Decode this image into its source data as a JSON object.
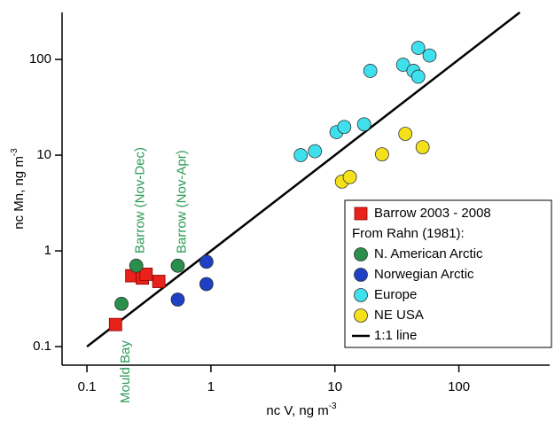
{
  "chart_data": {
    "type": "scatter",
    "xlog": true,
    "ylog": true,
    "xlabel": {
      "text": "nc V, ng m",
      "sup": "-3"
    },
    "ylabel": {
      "text": "nc Mn, ng m",
      "sup": "-3"
    },
    "xlim": [
      0.063,
      540
    ],
    "ylim": [
      0.064,
      310
    ],
    "xticks": [
      0.1,
      1,
      10,
      100
    ],
    "yticks": [
      0.1,
      1,
      10,
      100
    ],
    "legend_heading": "From Rahn (1981):",
    "legend_position": "lower right",
    "series": [
      {
        "name": "Barrow 2003 - 2008",
        "color": "#e8221a",
        "marker": "square",
        "x": [
          0.17,
          0.23,
          0.28,
          0.3,
          0.38
        ],
        "values": [
          0.17,
          0.55,
          0.52,
          0.57,
          0.48
        ]
      },
      {
        "name": "N. American Arctic",
        "color": "#2a8f4a",
        "marker": "circle",
        "x": [
          0.19,
          0.25,
          0.54
        ],
        "values": [
          0.28,
          0.7,
          0.7
        ]
      },
      {
        "name": "Norwegian Arctic",
        "color": "#1f3fc4",
        "marker": "circle",
        "x": [
          0.92,
          0.92,
          0.54
        ],
        "values": [
          0.77,
          0.45,
          0.31
        ]
      },
      {
        "name": "Europe",
        "color": "#3fe0ee",
        "marker": "circle",
        "x": [
          5.3,
          6.9,
          10.3,
          11.9,
          17.2,
          19.3,
          35.5,
          43,
          47,
          47,
          58
        ],
        "values": [
          10,
          11,
          17.4,
          19.7,
          21,
          76,
          88,
          76,
          66,
          132,
          110
        ]
      },
      {
        "name": "NE USA",
        "color": "#f5e11a",
        "marker": "circle",
        "x": [
          11.4,
          13.2,
          24,
          37,
          51
        ],
        "values": [
          5.3,
          5.9,
          10.2,
          16.7,
          12.1
        ]
      }
    ],
    "ref_line": {
      "name": "1:1 line",
      "color": "#000000",
      "x": [
        0.1,
        310
      ],
      "values": [
        0.1,
        310
      ]
    },
    "annotations": [
      {
        "text": "Mould Bay",
        "x": 0.19
      },
      {
        "text": "Barrow (Nov-Dec)",
        "x": 0.25
      },
      {
        "text": "Barrow (Nov-Apr)",
        "x": 0.54
      }
    ]
  }
}
